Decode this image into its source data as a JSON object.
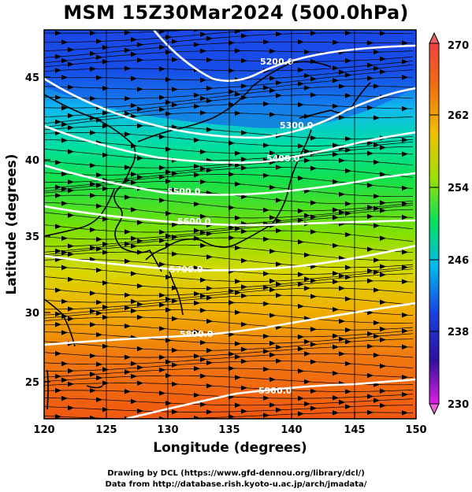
{
  "title": "MSM 15Z30Mar2024 (500.0hPa)",
  "xaxis": {
    "label": "Longitude (degrees)",
    "ticks": [
      "120",
      "125",
      "130",
      "135",
      "140",
      "145",
      "150"
    ]
  },
  "yaxis": {
    "label": "Latitude  (degrees)",
    "ticks": [
      "25",
      "30",
      "35",
      "40",
      "45"
    ]
  },
  "colorbar": {
    "ticks": [
      "270",
      "262",
      "254",
      "246",
      "238",
      "230"
    ]
  },
  "contours": [
    {
      "label": "5200.0"
    },
    {
      "label": "5300.0"
    },
    {
      "label": "5400.0"
    },
    {
      "label": "5500.0"
    },
    {
      "label": "5600.0"
    },
    {
      "label": "5700.0"
    },
    {
      "label": "5800.0"
    },
    {
      "label": "5900.0"
    }
  ],
  "credits": {
    "line1": "Drawing by DCL (https://www.gfd-dennou.org/library/dcl/)",
    "line2": "Data from http://database.rish.kyoto-u.ac.jp/arch/jmadata/"
  },
  "chart_data": {
    "type": "heatmap",
    "title": "MSM 15Z30Mar2024 (500.0hPa)",
    "xlabel": "Longitude (degrees)",
    "ylabel": "Latitude  (degrees)",
    "xlim": [
      120,
      150
    ],
    "ylim": [
      22.4,
      47.6
    ],
    "colorbar_range": [
      230,
      270
    ],
    "colormap": [
      "#e020e0",
      "#3010a0",
      "#1840e0",
      "#00b8f0",
      "#00e060",
      "#a0e000",
      "#f0c000",
      "#f06000",
      "#f04040"
    ],
    "overlays": [
      "geopotential height contours",
      "wind streamlines",
      "coastlines"
    ]
  }
}
